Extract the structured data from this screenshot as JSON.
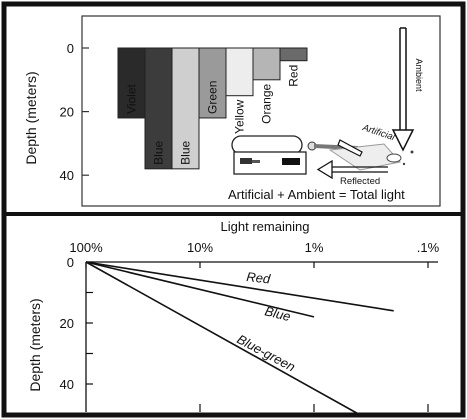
{
  "top_panel": {
    "y_axis_label": "Depth (meters)",
    "y_ticks": [
      {
        "label": "0",
        "value": 0
      },
      {
        "label": "20",
        "value": 20
      },
      {
        "label": "40",
        "value": 40
      }
    ],
    "bars": [
      {
        "label": "Violet",
        "depth": 22,
        "color": "#2a2a2a"
      },
      {
        "label": "Blue",
        "depth": 38,
        "color": "#3c3c3c"
      },
      {
        "label": "Blue",
        "depth": 38,
        "color": "#cfcfcf"
      },
      {
        "label": "Green",
        "depth": 22,
        "color": "#9a9a9a"
      },
      {
        "label": "Yellow",
        "depth": 15,
        "color": "#ededed"
      },
      {
        "label": "Orange",
        "depth": 10,
        "color": "#b5b5b5"
      },
      {
        "label": "Red",
        "depth": 4,
        "color": "#6a6a6a"
      }
    ],
    "ambient_label": "Ambient",
    "artificial_label": "Artificial",
    "reflected_label": "Reflected",
    "equation": "Artificial + Ambient = Total light"
  },
  "bottom_panel": {
    "title": "Light remaining",
    "y_axis_label": "Depth (meters)",
    "x_ticks": [
      "100%",
      "10%",
      "1%",
      ".1%"
    ],
    "y_ticks": [
      {
        "label": "0",
        "value": 0
      },
      {
        "label": "20",
        "value": 20
      },
      {
        "label": "40",
        "value": 40
      }
    ],
    "lines": [
      {
        "name": "Red",
        "start": {
          "light": "100%",
          "depth": 0
        },
        "end": {
          "light": "0.2%",
          "depth": 16
        }
      },
      {
        "name": "Blue",
        "start": {
          "light": "100%",
          "depth": 0
        },
        "end": {
          "light": "1%",
          "depth": 18
        }
      },
      {
        "name": "Blue-green",
        "start": {
          "light": "100%",
          "depth": 0
        },
        "end": {
          "light": "0.4%",
          "depth": 50
        }
      }
    ]
  }
}
